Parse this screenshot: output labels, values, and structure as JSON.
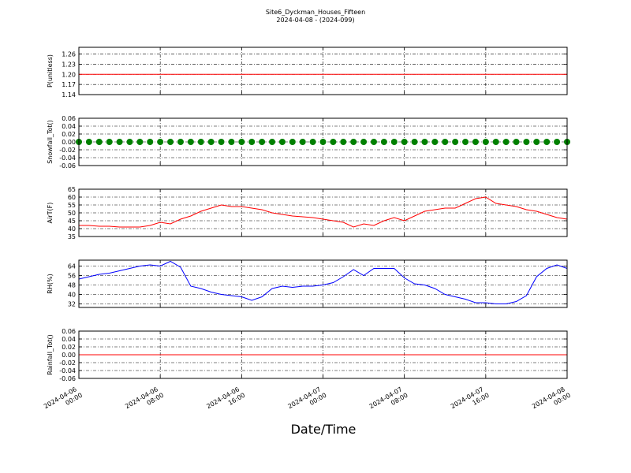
{
  "title": "Site6_Dyckman_Houses_Fifteen",
  "subtitle": "2024-04-08 - (2024-099)",
  "xlabel": "Date/Time",
  "chart_data": [
    {
      "type": "line",
      "ylabel": "P(unitless)",
      "color": "#ff0000",
      "ylim": [
        1.14,
        1.28
      ],
      "yticks": [
        1.14,
        1.17,
        {
          "value": 1.2,
          "label": "1.20"
        },
        1.23,
        1.26
      ],
      "grid": true,
      "xlim": [
        "2024-04-06 00:00",
        "2024-04-08 00:00"
      ],
      "xticks": [
        "2024-04-06 00:00",
        "2024-04-06 08:00",
        "2024-04-06 16:00",
        "2024-04-07 00:00",
        "2024-04-07 08:00",
        "2024-04-07 16:00",
        "2024-04-08 00:00"
      ],
      "x": [
        "2024-04-06 00:00",
        "2024-04-06 01:00",
        "2024-04-06 02:00",
        "2024-04-06 03:00",
        "2024-04-06 04:00",
        "2024-04-06 05:00",
        "2024-04-06 06:00",
        "2024-04-06 07:00",
        "2024-04-06 08:00",
        "2024-04-06 09:00",
        "2024-04-06 10:00",
        "2024-04-06 11:00",
        "2024-04-06 12:00",
        "2024-04-06 13:00",
        "2024-04-06 14:00",
        "2024-04-06 15:00",
        "2024-04-06 16:00",
        "2024-04-06 17:00",
        "2024-04-06 18:00",
        "2024-04-06 19:00",
        "2024-04-06 20:00",
        "2024-04-06 21:00",
        "2024-04-06 22:00",
        "2024-04-06 23:00",
        "2024-04-07 00:00",
        "2024-04-07 01:00",
        "2024-04-07 02:00",
        "2024-04-07 03:00",
        "2024-04-07 04:00",
        "2024-04-07 05:00",
        "2024-04-07 06:00",
        "2024-04-07 07:00",
        "2024-04-07 08:00",
        "2024-04-07 09:00",
        "2024-04-07 10:00",
        "2024-04-07 11:00",
        "2024-04-07 12:00",
        "2024-04-07 13:00",
        "2024-04-07 14:00",
        "2024-04-07 15:00",
        "2024-04-07 16:00",
        "2024-04-07 17:00",
        "2024-04-07 18:00",
        "2024-04-07 19:00",
        "2024-04-07 20:00",
        "2024-04-07 21:00",
        "2024-04-07 22:00",
        "2024-04-07 23:00",
        "2024-04-08 00:00"
      ],
      "values": [
        1.2,
        1.2,
        1.2,
        1.2,
        1.2,
        1.2,
        1.2,
        1.2,
        1.2,
        1.2,
        1.2,
        1.2,
        1.2,
        1.2,
        1.2,
        1.2,
        1.2,
        1.2,
        1.2,
        1.2,
        1.2,
        1.2,
        1.2,
        1.2,
        1.2,
        1.2,
        1.2,
        1.2,
        1.2,
        1.2,
        1.2,
        1.2,
        1.2,
        1.2,
        1.2,
        1.2,
        1.2,
        1.2,
        1.2,
        1.2,
        1.2,
        1.2,
        1.2,
        1.2,
        1.2,
        1.2,
        1.2,
        1.2,
        1.2
      ]
    },
    {
      "type": "scatter",
      "ylabel": "Snowfall_Tot()",
      "color": "#008000",
      "ylim": [
        -0.06,
        0.06
      ],
      "yticks": [
        -0.06,
        -0.04,
        -0.02,
        {
          "value": 0,
          "label": "0.00"
        },
        0.02,
        0.04,
        0.06
      ],
      "grid": true,
      "xlim": [
        "2024-04-06 00:00",
        "2024-04-08 00:00"
      ],
      "xticks": [
        "2024-04-06 00:00",
        "2024-04-06 08:00",
        "2024-04-06 16:00",
        "2024-04-07 00:00",
        "2024-04-07 08:00",
        "2024-04-07 16:00",
        "2024-04-08 00:00"
      ],
      "x": [
        "2024-04-06 00:00",
        "2024-04-06 01:00",
        "2024-04-06 02:00",
        "2024-04-06 03:00",
        "2024-04-06 04:00",
        "2024-04-06 05:00",
        "2024-04-06 06:00",
        "2024-04-06 07:00",
        "2024-04-06 08:00",
        "2024-04-06 09:00",
        "2024-04-06 10:00",
        "2024-04-06 11:00",
        "2024-04-06 12:00",
        "2024-04-06 13:00",
        "2024-04-06 14:00",
        "2024-04-06 15:00",
        "2024-04-06 16:00",
        "2024-04-06 17:00",
        "2024-04-06 18:00",
        "2024-04-06 19:00",
        "2024-04-06 20:00",
        "2024-04-06 21:00",
        "2024-04-06 22:00",
        "2024-04-06 23:00",
        "2024-04-07 00:00",
        "2024-04-07 01:00",
        "2024-04-07 02:00",
        "2024-04-07 03:00",
        "2024-04-07 04:00",
        "2024-04-07 05:00",
        "2024-04-07 06:00",
        "2024-04-07 07:00",
        "2024-04-07 08:00",
        "2024-04-07 09:00",
        "2024-04-07 10:00",
        "2024-04-07 11:00",
        "2024-04-07 12:00",
        "2024-04-07 13:00",
        "2024-04-07 14:00",
        "2024-04-07 15:00",
        "2024-04-07 16:00",
        "2024-04-07 17:00",
        "2024-04-07 18:00",
        "2024-04-07 19:00",
        "2024-04-07 20:00",
        "2024-04-07 21:00",
        "2024-04-07 22:00",
        "2024-04-07 23:00",
        "2024-04-08 00:00"
      ],
      "values": [
        0,
        0,
        0,
        0,
        0,
        0,
        0,
        0,
        0,
        0,
        0,
        0,
        0,
        0,
        0,
        0,
        0,
        0,
        0,
        0,
        0,
        0,
        0,
        0,
        0,
        0,
        0,
        0,
        0,
        0,
        0,
        0,
        0,
        0,
        0,
        0,
        0,
        0,
        0,
        0,
        0,
        0,
        0,
        0,
        0,
        0,
        0,
        0,
        0
      ]
    },
    {
      "type": "line",
      "ylabel": "AirT(F)",
      "color": "#ff0000",
      "ylim": [
        35,
        65
      ],
      "yticks": [
        35,
        40,
        45,
        50,
        55,
        60,
        65
      ],
      "grid": true,
      "xlim": [
        "2024-04-06 00:00",
        "2024-04-08 00:00"
      ],
      "xticks": [
        "2024-04-06 00:00",
        "2024-04-06 08:00",
        "2024-04-06 16:00",
        "2024-04-07 00:00",
        "2024-04-07 08:00",
        "2024-04-07 16:00",
        "2024-04-08 00:00"
      ],
      "x": [
        "2024-04-06 00:00",
        "2024-04-06 01:00",
        "2024-04-06 02:00",
        "2024-04-06 03:00",
        "2024-04-06 04:00",
        "2024-04-06 05:00",
        "2024-04-06 06:00",
        "2024-04-06 07:00",
        "2024-04-06 08:00",
        "2024-04-06 09:00",
        "2024-04-06 10:00",
        "2024-04-06 11:00",
        "2024-04-06 12:00",
        "2024-04-06 13:00",
        "2024-04-06 14:00",
        "2024-04-06 15:00",
        "2024-04-06 16:00",
        "2024-04-06 17:00",
        "2024-04-06 18:00",
        "2024-04-06 19:00",
        "2024-04-06 20:00",
        "2024-04-06 21:00",
        "2024-04-06 22:00",
        "2024-04-06 23:00",
        "2024-04-07 00:00",
        "2024-04-07 01:00",
        "2024-04-07 02:00",
        "2024-04-07 03:00",
        "2024-04-07 04:00",
        "2024-04-07 05:00",
        "2024-04-07 06:00",
        "2024-04-07 07:00",
        "2024-04-07 08:00",
        "2024-04-07 09:00",
        "2024-04-07 10:00",
        "2024-04-07 11:00",
        "2024-04-07 12:00",
        "2024-04-07 13:00",
        "2024-04-07 14:00",
        "2024-04-07 15:00",
        "2024-04-07 16:00",
        "2024-04-07 17:00",
        "2024-04-07 18:00",
        "2024-04-07 19:00",
        "2024-04-07 20:00",
        "2024-04-07 21:00",
        "2024-04-07 22:00",
        "2024-04-07 23:00",
        "2024-04-08 00:00"
      ],
      "values": [
        42,
        42,
        41.5,
        41.5,
        41,
        41,
        41,
        42,
        44,
        43,
        46,
        48,
        51,
        53,
        55,
        54,
        54,
        53,
        52,
        50,
        49,
        48,
        47.5,
        47,
        46,
        45,
        44,
        41,
        43,
        42,
        45,
        47,
        45,
        48,
        51,
        52,
        53,
        53,
        56,
        59,
        60,
        56,
        55,
        54,
        52,
        51,
        49,
        47,
        46
      ]
    },
    {
      "type": "line",
      "ylabel": "RH(%)",
      "color": "#0000ff",
      "ylim": [
        29,
        69
      ],
      "yticks": [
        32,
        40,
        48,
        56,
        64
      ],
      "grid": true,
      "xlim": [
        "2024-04-06 00:00",
        "2024-04-08 00:00"
      ],
      "xticks": [
        "2024-04-06 00:00",
        "2024-04-06 08:00",
        "2024-04-06 16:00",
        "2024-04-07 00:00",
        "2024-04-07 08:00",
        "2024-04-07 16:00",
        "2024-04-08 00:00"
      ],
      "x": [
        "2024-04-06 00:00",
        "2024-04-06 01:00",
        "2024-04-06 02:00",
        "2024-04-06 03:00",
        "2024-04-06 04:00",
        "2024-04-06 05:00",
        "2024-04-06 06:00",
        "2024-04-06 07:00",
        "2024-04-06 08:00",
        "2024-04-06 09:00",
        "2024-04-06 10:00",
        "2024-04-06 11:00",
        "2024-04-06 12:00",
        "2024-04-06 13:00",
        "2024-04-06 14:00",
        "2024-04-06 15:00",
        "2024-04-06 16:00",
        "2024-04-06 17:00",
        "2024-04-06 18:00",
        "2024-04-06 19:00",
        "2024-04-06 20:00",
        "2024-04-06 21:00",
        "2024-04-06 22:00",
        "2024-04-06 23:00",
        "2024-04-07 00:00",
        "2024-04-07 01:00",
        "2024-04-07 02:00",
        "2024-04-07 03:00",
        "2024-04-07 04:00",
        "2024-04-07 05:00",
        "2024-04-07 06:00",
        "2024-04-07 07:00",
        "2024-04-07 08:00",
        "2024-04-07 09:00",
        "2024-04-07 10:00",
        "2024-04-07 11:00",
        "2024-04-07 12:00",
        "2024-04-07 13:00",
        "2024-04-07 14:00",
        "2024-04-07 15:00",
        "2024-04-07 16:00",
        "2024-04-07 17:00",
        "2024-04-07 18:00",
        "2024-04-07 19:00",
        "2024-04-07 20:00",
        "2024-04-07 21:00",
        "2024-04-07 22:00",
        "2024-04-07 23:00",
        "2024-04-08 00:00"
      ],
      "values": [
        53,
        55,
        57,
        58,
        60,
        62,
        64,
        65,
        64,
        68,
        63,
        47,
        45,
        42,
        40,
        39,
        38,
        35,
        38,
        45,
        47,
        46,
        47,
        47,
        48,
        50,
        55,
        61,
        56,
        62,
        62,
        62,
        54,
        49,
        48,
        45,
        40,
        38,
        36,
        33,
        33,
        32,
        32,
        34,
        39,
        55,
        62,
        65,
        62
      ]
    },
    {
      "type": "line",
      "ylabel": "Rainfall_Tot()",
      "color": "#ff0000",
      "ylim": [
        -0.06,
        0.06
      ],
      "yticks": [
        -0.06,
        -0.04,
        -0.02,
        {
          "value": 0,
          "label": "0.00"
        },
        0.02,
        0.04,
        0.06
      ],
      "grid": true,
      "xlim": [
        "2024-04-06 00:00",
        "2024-04-08 00:00"
      ],
      "xticks": [
        "2024-04-06 00:00",
        "2024-04-06 08:00",
        "2024-04-06 16:00",
        "2024-04-07 00:00",
        "2024-04-07 08:00",
        "2024-04-07 16:00",
        "2024-04-08 00:00"
      ],
      "x": [
        "2024-04-06 00:00",
        "2024-04-06 01:00",
        "2024-04-06 02:00",
        "2024-04-06 03:00",
        "2024-04-06 04:00",
        "2024-04-06 05:00",
        "2024-04-06 06:00",
        "2024-04-06 07:00",
        "2024-04-06 08:00",
        "2024-04-06 09:00",
        "2024-04-06 10:00",
        "2024-04-06 11:00",
        "2024-04-06 12:00",
        "2024-04-06 13:00",
        "2024-04-06 14:00",
        "2024-04-06 15:00",
        "2024-04-06 16:00",
        "2024-04-06 17:00",
        "2024-04-06 18:00",
        "2024-04-06 19:00",
        "2024-04-06 20:00",
        "2024-04-06 21:00",
        "2024-04-06 22:00",
        "2024-04-06 23:00",
        "2024-04-07 00:00",
        "2024-04-07 01:00",
        "2024-04-07 02:00",
        "2024-04-07 03:00",
        "2024-04-07 04:00",
        "2024-04-07 05:00",
        "2024-04-07 06:00",
        "2024-04-07 07:00",
        "2024-04-07 08:00",
        "2024-04-07 09:00",
        "2024-04-07 10:00",
        "2024-04-07 11:00",
        "2024-04-07 12:00",
        "2024-04-07 13:00",
        "2024-04-07 14:00",
        "2024-04-07 15:00",
        "2024-04-07 16:00",
        "2024-04-07 17:00",
        "2024-04-07 18:00",
        "2024-04-07 19:00",
        "2024-04-07 20:00",
        "2024-04-07 21:00",
        "2024-04-07 22:00",
        "2024-04-07 23:00",
        "2024-04-08 00:00"
      ],
      "values": [
        0,
        0,
        0,
        0,
        0,
        0,
        0,
        0,
        0,
        0,
        0,
        0,
        0,
        0,
        0,
        0,
        0,
        0,
        0,
        0,
        0,
        0,
        0,
        0,
        0,
        0,
        0,
        0,
        0,
        0,
        0,
        0,
        0,
        0,
        0,
        0,
        0,
        0,
        0,
        0,
        0,
        0,
        0,
        0,
        0,
        0,
        0,
        0,
        0
      ]
    }
  ]
}
